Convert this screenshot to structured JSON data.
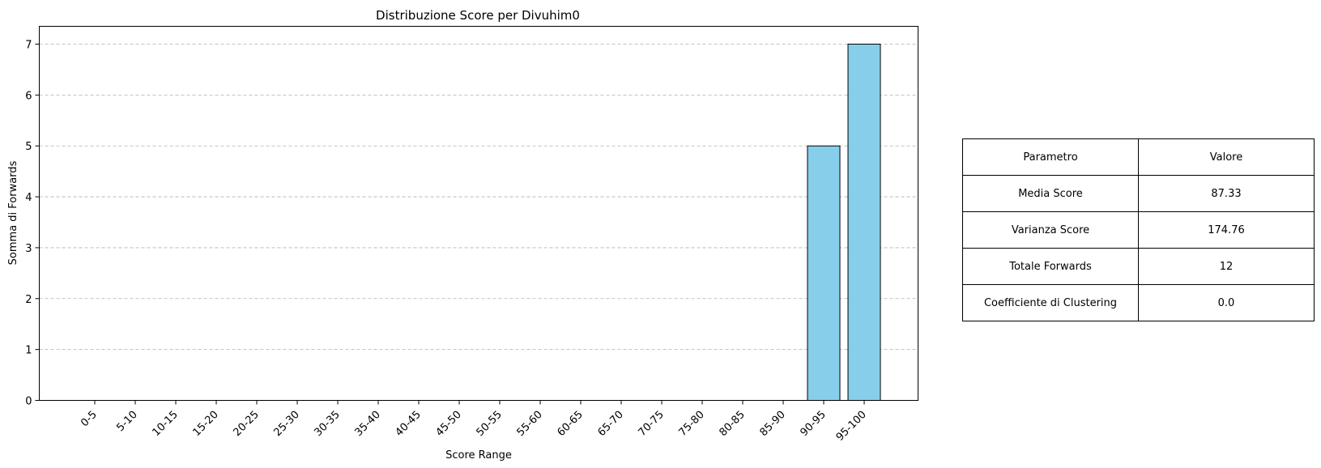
{
  "chart_data": {
    "type": "bar",
    "title": "Distribuzione Score per Divuhim0",
    "xlabel": "Score Range",
    "ylabel": "Somma di Forwards",
    "categories": [
      "0-5",
      "5-10",
      "10-15",
      "15-20",
      "20-25",
      "25-30",
      "30-35",
      "35-40",
      "40-45",
      "45-50",
      "50-55",
      "55-60",
      "60-65",
      "65-70",
      "70-75",
      "75-80",
      "80-85",
      "85-90",
      "90-95",
      "95-100"
    ],
    "values": [
      0,
      0,
      0,
      0,
      0,
      0,
      0,
      0,
      0,
      0,
      0,
      0,
      0,
      0,
      0,
      0,
      0,
      0,
      5,
      7
    ],
    "ylim": [
      0,
      7.35
    ],
    "yticks": [
      0,
      1,
      2,
      3,
      4,
      5,
      6,
      7
    ],
    "grid": "y-dashed",
    "bar_color": "#87ceeb",
    "edge_color": "#000000",
    "grid_color": "#b0b0b0"
  },
  "table": {
    "headers": [
      "Parametro",
      "Valore"
    ],
    "rows": [
      [
        "Media Score",
        "87.33"
      ],
      [
        "Varianza Score",
        "174.76"
      ],
      [
        "Totale Forwards",
        "12"
      ],
      [
        "Coefficiente di Clustering",
        "0.0"
      ]
    ]
  }
}
